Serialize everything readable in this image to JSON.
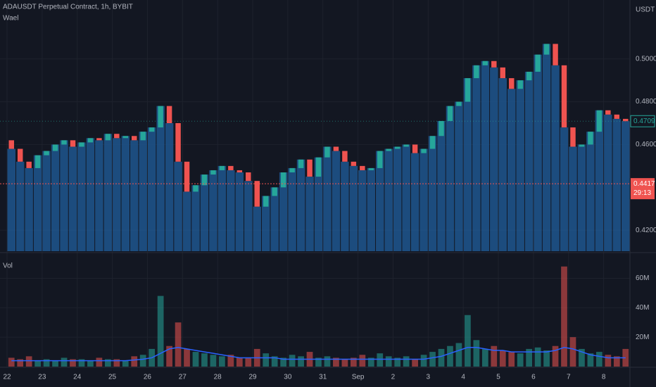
{
  "chart_data": [
    {
      "type": "candlestick",
      "title": "ADAUSDT Perpetual Contract, 1h, BYBIT",
      "indicator": "Wael",
      "unit": "USDT",
      "categories": [
        "22",
        null,
        null,
        null,
        "23",
        null,
        null,
        null,
        "24",
        null,
        null,
        null,
        "25",
        null,
        null,
        null,
        "26",
        null,
        null,
        null,
        "27",
        null,
        null,
        null,
        "28",
        null,
        null,
        null,
        "29",
        null,
        null,
        null,
        "30",
        null,
        null,
        null,
        "31",
        null,
        null,
        null,
        "Sep",
        null,
        null,
        null,
        "2",
        null,
        null,
        null,
        "3",
        null,
        null,
        null,
        "4",
        null,
        null,
        null,
        "5",
        null,
        null,
        null,
        "6",
        null,
        null,
        null,
        "7",
        null,
        null,
        null,
        "8",
        null,
        null
      ],
      "open": [
        0.462,
        0.458,
        0.452,
        0.449,
        0.455,
        0.457,
        0.46,
        0.462,
        0.459,
        0.461,
        0.463,
        0.462,
        0.465,
        0.463,
        0.464,
        0.462,
        0.466,
        0.468,
        0.478,
        0.47,
        0.452,
        0.438,
        0.441,
        0.446,
        0.448,
        0.45,
        0.448,
        0.447,
        0.443,
        0.431,
        0.436,
        0.44,
        0.447,
        0.449,
        0.453,
        0.445,
        0.454,
        0.459,
        0.457,
        0.452,
        0.45,
        0.448,
        0.449,
        0.457,
        0.458,
        0.459,
        0.46,
        0.456,
        0.458,
        0.464,
        0.471,
        0.478,
        0.48,
        0.491,
        0.497,
        0.499,
        0.496,
        0.491,
        0.486,
        0.49,
        0.494,
        0.502,
        0.507,
        0.497,
        0.468,
        0.459,
        0.46,
        0.466,
        0.476,
        0.474,
        0.472
      ],
      "close": [
        0.458,
        0.452,
        0.449,
        0.455,
        0.457,
        0.46,
        0.462,
        0.459,
        0.461,
        0.463,
        0.462,
        0.465,
        0.463,
        0.464,
        0.462,
        0.466,
        0.468,
        0.478,
        0.47,
        0.452,
        0.438,
        0.441,
        0.446,
        0.448,
        0.45,
        0.448,
        0.447,
        0.443,
        0.431,
        0.436,
        0.44,
        0.447,
        0.449,
        0.453,
        0.445,
        0.454,
        0.459,
        0.457,
        0.452,
        0.45,
        0.448,
        0.449,
        0.457,
        0.458,
        0.459,
        0.46,
        0.456,
        0.458,
        0.464,
        0.471,
        0.478,
        0.48,
        0.491,
        0.497,
        0.499,
        0.496,
        0.491,
        0.486,
        0.49,
        0.494,
        0.502,
        0.507,
        0.497,
        0.468,
        0.459,
        0.46,
        0.466,
        0.476,
        0.474,
        0.472,
        0.4709
      ],
      "up_color": "#26a69a",
      "down_color": "#ef5350",
      "column_color": "#1f5a96",
      "ylim": [
        0.4102,
        0.5275
      ],
      "yticks": [
        {
          "value": 0.42,
          "label": "0.4200"
        },
        {
          "value": 0.46,
          "label": "0.4600"
        },
        {
          "value": 0.48,
          "label": "0.4800"
        },
        {
          "value": 0.5,
          "label": "0.5000"
        }
      ],
      "last_price": {
        "value": 0.4709,
        "label": "0.4709"
      },
      "marked_price": {
        "value": 0.4417,
        "label": "0.4417",
        "countdown": "29:13"
      },
      "grid": true
    },
    {
      "type": "volume",
      "title": "Vol",
      "values": [
        6,
        5,
        7,
        4,
        5,
        4,
        6,
        5,
        5,
        4,
        6,
        5,
        5,
        4,
        7,
        8,
        12,
        48,
        14,
        30,
        12,
        10,
        9,
        8,
        7,
        8,
        6,
        6,
        12,
        9,
        7,
        6,
        8,
        7,
        10,
        6,
        7,
        6,
        5,
        6,
        8,
        6,
        9,
        7,
        6,
        7,
        5,
        8,
        10,
        12,
        14,
        16,
        35,
        18,
        12,
        14,
        11,
        10,
        9,
        12,
        13,
        11,
        14,
        68,
        20,
        12,
        9,
        10,
        8,
        7,
        12
      ],
      "ma_values": [
        4,
        4,
        4,
        4,
        4,
        4,
        4,
        4,
        4,
        4,
        4,
        4,
        4,
        4,
        4.5,
        5,
        6,
        9,
        12,
        13,
        12,
        11,
        10,
        9,
        8,
        7,
        6,
        6,
        6,
        6,
        6,
        5,
        5,
        5,
        5,
        5,
        5,
        5,
        5,
        5,
        5,
        5,
        5,
        5,
        5,
        5,
        5,
        5,
        6,
        7,
        9,
        11,
        13,
        13,
        12,
        11,
        11,
        10,
        10,
        10,
        10,
        10,
        11,
        13,
        12,
        10,
        8,
        7,
        6,
        6,
        6
      ],
      "ma_color": "#2962ff",
      "ylim": [
        0,
        76
      ],
      "yticks": [
        {
          "value": 20,
          "label": "20M"
        },
        {
          "value": 40,
          "label": "40M"
        },
        {
          "value": 60,
          "label": "60M"
        }
      ],
      "grid": true
    }
  ]
}
